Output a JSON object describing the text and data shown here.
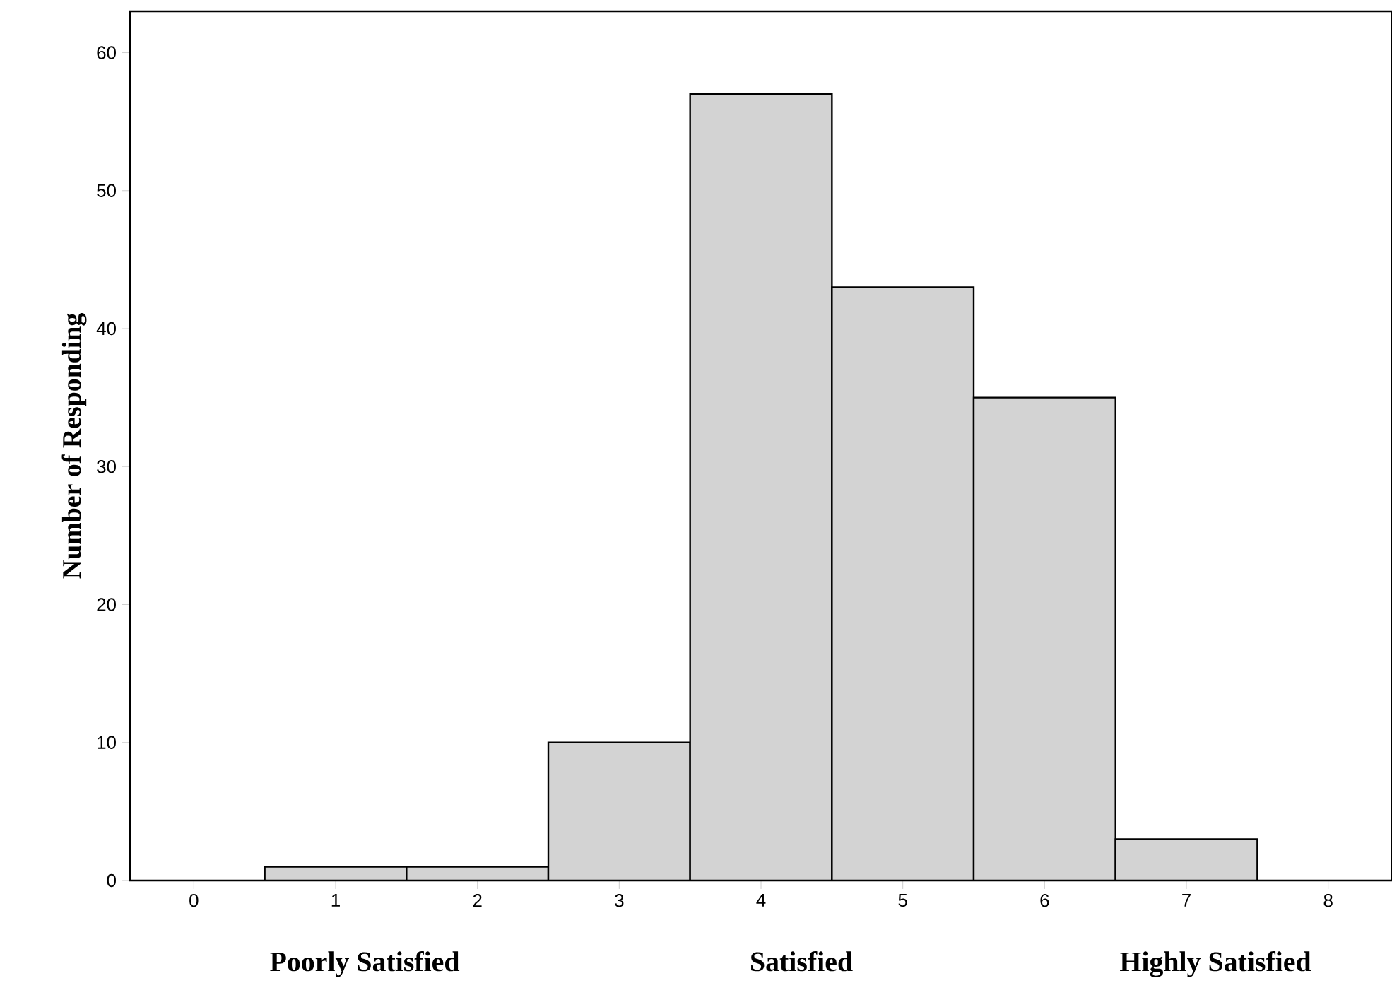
{
  "chart_data": {
    "type": "histogram",
    "ylabel": "Number of Responding",
    "bins": [
      0.5,
      1.5,
      2.5,
      3.5,
      4.5,
      5.5,
      6.5,
      7.5
    ],
    "values": [
      1,
      1,
      10,
      57,
      43,
      35,
      3
    ],
    "color": "#d3d3d3",
    "xlim": [
      -0.45,
      8.45
    ],
    "xticks": [
      0,
      1,
      2,
      3,
      4,
      5,
      6,
      7,
      8
    ],
    "ylim": [
      0,
      63
    ],
    "yticks": [
      0,
      10,
      20,
      30,
      40,
      50,
      60
    ],
    "grid": false,
    "annotations": [
      "Poorly Satisfied",
      "Satisfied",
      "Highly Satisfied"
    ]
  }
}
